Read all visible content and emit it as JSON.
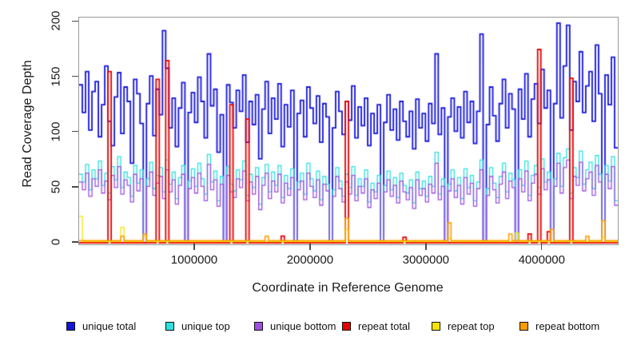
{
  "figure": {
    "background": "#ffffff",
    "title": ""
  },
  "axis_style": {
    "box_color": "#999999",
    "tick_color": "#4a4a4a",
    "text_color": "#1a1a1a"
  },
  "chart_data": {
    "type": "line",
    "subtype": "step",
    "title": "",
    "xlabel": "Coordinate in Reference Genome",
    "ylabel": "Read Coverage Depth",
    "xlim": [
      0,
      4650000
    ],
    "ylim": [
      0,
      204
    ],
    "grid": "off",
    "legend_position": "bottom",
    "x_ticks": [
      1000000,
      2000000,
      3000000,
      4000000
    ],
    "x_tick_labels": [
      "1000000",
      "2000000",
      "3000000",
      "4000000"
    ],
    "y_ticks": [
      0,
      50,
      100,
      150,
      200
    ],
    "y_tick_labels": [
      "0",
      "50",
      "100",
      "150",
      "200"
    ],
    "n_points": 168,
    "series": [
      {
        "name": "unique total",
        "color": "#1414dd",
        "line_width": 1.8,
        "values": [
          143,
          118,
          155,
          102,
          137,
          146,
          96,
          125,
          160,
          110,
          88,
          132,
          154,
          99,
          141,
          128,
          72,
          148,
          135,
          108,
          0,
          126,
          151,
          97,
          139,
          116,
          192,
          158,
          104,
          131,
          87,
          122,
          145,
          0,
          118,
          136,
          109,
          150,
          128,
          95,
          171,
          124,
          139,
          82,
          116,
          0,
          143,
          127,
          104,
          138,
          119,
          152,
          91,
          128,
          107,
          134,
          76,
          121,
          146,
          99,
          131,
          112,
          144,
          87,
          125,
          105,
          138,
          0,
          117,
          129,
          96,
          141,
          122,
          108,
          133,
          91,
          126,
          114,
          0,
          104,
          137,
          119,
          98,
          128,
          111,
          142,
          95,
          123,
          106,
          131,
          88,
          117,
          99,
          125,
          0,
          109,
          134,
          102,
          121,
          93,
          128,
          110,
          96,
          119,
          85,
          130,
          104,
          117,
          92,
          126,
          108,
          171,
          98,
          122,
          0,
          114,
          131,
          101,
          123,
          95,
          137,
          109,
          128,
          90,
          119,
          189,
          0,
          107,
          141,
          115,
          92,
          126,
          148,
          104,
          135,
          121,
          0,
          139,
          112,
          153,
          96,
          130,
          144,
          108,
          157,
          122,
          138,
          0,
          126,
          199,
          113,
          160,
          197,
          102,
          146,
          128,
          173,
          118,
          142,
          155,
          110,
          179,
          135,
          0,
          152,
          125,
          168,
          86
        ]
      },
      {
        "name": "unique top",
        "color": "#2ee0e0",
        "line_width": 1.3,
        "values": [
          62,
          55,
          71,
          48,
          66,
          58,
          74,
          52,
          63,
          45,
          69,
          57,
          78,
          50,
          64,
          59,
          42,
          70,
          54,
          66,
          0,
          58,
          73,
          49,
          61,
          68,
          46,
          75,
          53,
          64,
          40,
          59,
          70,
          0,
          56,
          67,
          51,
          72,
          58,
          44,
          80,
          55,
          65,
          38,
          60,
          0,
          69,
          53,
          47,
          66,
          57,
          74,
          43,
          62,
          50,
          68,
          35,
          59,
          71,
          46,
          64,
          52,
          70,
          41,
          61,
          49,
          67,
          0,
          55,
          63,
          44,
          72,
          58,
          47,
          65,
          39,
          60,
          53,
          0,
          48,
          68,
          56,
          42,
          62,
          50,
          69,
          43,
          58,
          51,
          66,
          37,
          54,
          46,
          61,
          0,
          52,
          65,
          48,
          59,
          41,
          63,
          52,
          45,
          57,
          36,
          64,
          49,
          56,
          42,
          60,
          51,
          82,
          44,
          58,
          0,
          53,
          66,
          47,
          59,
          40,
          67,
          50,
          61,
          38,
          55,
          75,
          0,
          49,
          68,
          54,
          41,
          60,
          72,
          46,
          63,
          57,
          0,
          66,
          52,
          74,
          43,
          61,
          70,
          50,
          76,
          55,
          64,
          0,
          58,
          81,
          51,
          77,
          85,
          45,
          68,
          59,
          83,
          53,
          66,
          73,
          49,
          79,
          62,
          0,
          70,
          56,
          78,
          38
        ]
      },
      {
        "name": "unique bottom",
        "color": "#9d50e0",
        "line_width": 1.3,
        "values": [
          55,
          48,
          63,
          42,
          58,
          51,
          66,
          45,
          56,
          39,
          61,
          50,
          69,
          44,
          57,
          52,
          37,
          62,
          47,
          58,
          0,
          51,
          64,
          43,
          54,
          60,
          40,
          66,
          46,
          57,
          35,
          52,
          62,
          0,
          49,
          59,
          45,
          63,
          51,
          38,
          71,
          48,
          57,
          33,
          53,
          0,
          61,
          46,
          41,
          58,
          50,
          65,
          38,
          55,
          44,
          60,
          30,
          52,
          63,
          40,
          56,
          46,
          62,
          36,
          54,
          43,
          59,
          0,
          48,
          56,
          39,
          63,
          51,
          41,
          57,
          34,
          53,
          47,
          0,
          42,
          60,
          49,
          37,
          55,
          44,
          61,
          38,
          51,
          45,
          58,
          32,
          48,
          40,
          54,
          0,
          46,
          57,
          42,
          52,
          36,
          56,
          46,
          39,
          50,
          31,
          57,
          43,
          49,
          37,
          53,
          45,
          72,
          39,
          51,
          0,
          47,
          58,
          41,
          52,
          35,
          59,
          44,
          54,
          33,
          49,
          66,
          0,
          43,
          60,
          48,
          36,
          53,
          64,
          40,
          56,
          50,
          0,
          58,
          46,
          65,
          38,
          54,
          62,
          44,
          67,
          48,
          57,
          0,
          51,
          72,
          45,
          68,
          75,
          40,
          60,
          52,
          73,
          47,
          58,
          64,
          43,
          70,
          55,
          0,
          62,
          49,
          69,
          34
        ]
      },
      {
        "name": "repeat total",
        "color": "#e60000",
        "line_width": 1.8,
        "base": 0,
        "spikes": {
          "9": 155,
          "24": 148,
          "27": 165,
          "47": 125,
          "52": 112,
          "63": 6,
          "83": 128,
          "101": 5,
          "140": 8,
          "143": 175,
          "146": 10,
          "153": 149
        }
      },
      {
        "name": "repeat top",
        "color": "#f5e400",
        "line_width": 1.3,
        "base": 1,
        "spikes": {
          "0": 24,
          "13": 14,
          "20": 6,
          "83": 12,
          "115": 4,
          "136": 9,
          "163": 5
        }
      },
      {
        "name": "repeat bottom",
        "color": "#ff9d00",
        "line_width": 1.6,
        "base": 2,
        "spikes": {
          "13": 6,
          "20": 8,
          "58": 6,
          "83": 22,
          "115": 18,
          "134": 8,
          "147": 12,
          "158": 6,
          "163": 20
        }
      }
    ]
  }
}
